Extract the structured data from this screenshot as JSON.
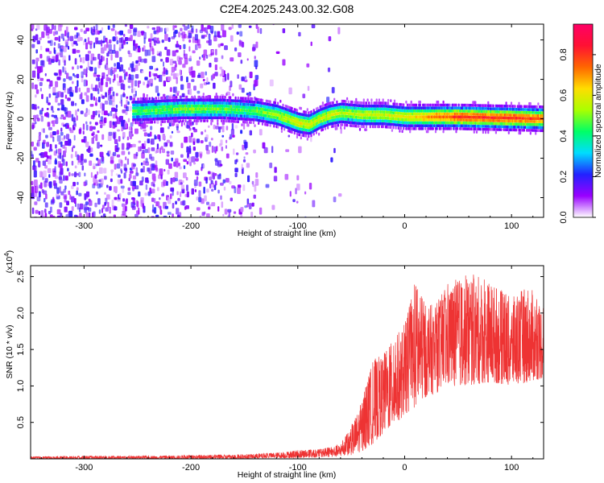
{
  "title": "C2E4.2025.243.00.32.G08",
  "chart_data": [
    {
      "type": "heatmap",
      "name": "spectrogram",
      "xlabel": "Height of straight line (km)",
      "ylabel": "Frequency (Hz)",
      "xlim": [
        -350,
        130
      ],
      "ylim": [
        -50,
        48
      ],
      "xticks": [
        -300,
        -200,
        -100,
        0,
        100
      ],
      "yticks": [
        -40,
        -20,
        0,
        20,
        40
      ],
      "colorbar": {
        "label": "Normalized spectral amplitude",
        "range": [
          0,
          0.95
        ],
        "ticks": [
          0.0,
          0.2,
          0.4,
          0.6,
          0.8
        ],
        "stops": [
          "#ffffff",
          "#9900ff",
          "#2222ff",
          "#00ddff",
          "#00ff66",
          "#aaff00",
          "#ffdd00",
          "#ff6600",
          "#ff1133",
          "#ff0066"
        ]
      },
      "features": {
        "noise_region_x": [
          -350,
          -140
        ],
        "band_center_hz": [
          [
            -250,
            4
          ],
          [
            -210,
            5
          ],
          [
            -170,
            5
          ],
          [
            -140,
            4
          ],
          [
            -120,
            2
          ],
          [
            -100,
            -2
          ],
          [
            -90,
            -3
          ],
          [
            -80,
            0
          ],
          [
            -70,
            2
          ],
          [
            -60,
            3
          ],
          [
            -40,
            2
          ],
          [
            -20,
            2
          ],
          [
            0,
            1
          ],
          [
            50,
            1
          ],
          [
            130,
            0
          ]
        ],
        "amplitude_at_x": [
          [
            -250,
            0.45
          ],
          [
            -200,
            0.5
          ],
          [
            -150,
            0.45
          ],
          [
            -100,
            0.6
          ],
          [
            -50,
            0.55
          ],
          [
            0,
            0.6
          ],
          [
            50,
            0.8
          ],
          [
            100,
            0.8
          ],
          [
            130,
            0.75
          ]
        ]
      }
    },
    {
      "type": "line",
      "name": "snr",
      "xlabel": "Height of straight line (km)",
      "ylabel": "SNR (10 * v/v)",
      "y_multiplier": "(x10",
      "y_multiplier_exp": "4",
      "y_multiplier_close": ")",
      "xlim": [
        -350,
        130
      ],
      "ylim": [
        0,
        2.65
      ],
      "xticks": [
        -300,
        -200,
        -100,
        0,
        100
      ],
      "yticks": [
        0.5,
        1.0,
        1.5,
        2.0,
        2.5
      ],
      "ytick_labels": [
        "0.5",
        "1.0",
        "1.5",
        "2.0",
        "2.5"
      ],
      "color": "#ee3333",
      "envelope": {
        "x": [
          -350,
          -300,
          -250,
          -200,
          -150,
          -125,
          -110,
          -100,
          -80,
          -60,
          -50,
          -40,
          -30,
          -20,
          -10,
          0,
          10,
          20,
          30,
          40,
          60,
          80,
          100,
          115,
          130
        ],
        "low": [
          0.0,
          0.0,
          0.0,
          0.0,
          0.0,
          0.01,
          0.01,
          0.01,
          0.02,
          0.03,
          0.05,
          0.1,
          0.2,
          0.35,
          0.45,
          0.6,
          0.7,
          0.85,
          0.9,
          1.0,
          1.0,
          1.05,
          1.0,
          1.05,
          1.1
        ],
        "high": [
          0.03,
          0.04,
          0.04,
          0.05,
          0.06,
          0.08,
          0.1,
          0.12,
          0.13,
          0.2,
          0.45,
          0.8,
          1.35,
          1.45,
          1.65,
          1.85,
          2.45,
          2.1,
          2.15,
          2.4,
          2.55,
          2.45,
          2.2,
          2.4,
          2.1
        ]
      }
    }
  ]
}
